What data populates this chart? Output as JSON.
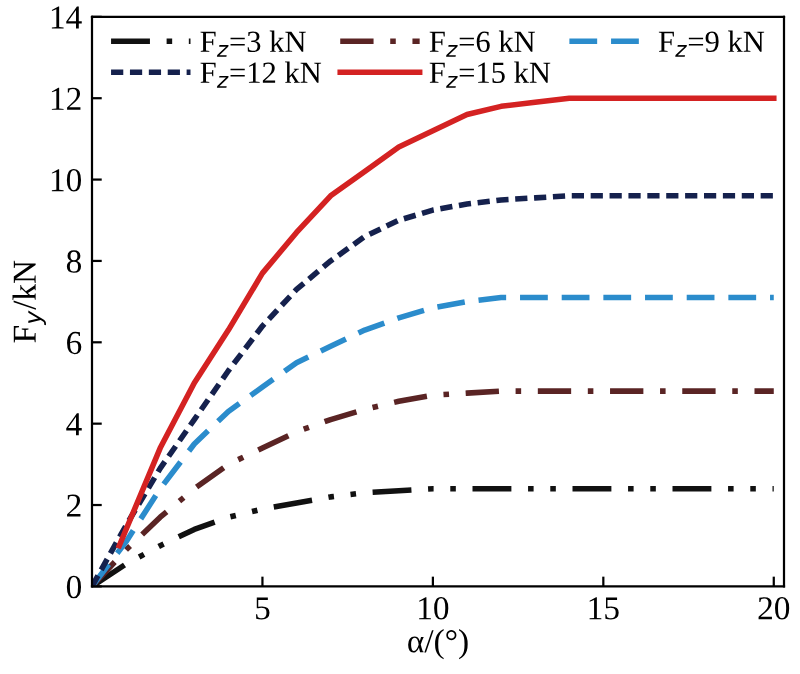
{
  "chart_data": {
    "type": "line",
    "xlabel": "α/(°)",
    "ylabel": "F$_{y}$/kN",
    "xlim": [
      0,
      20.3
    ],
    "xticks": [
      5,
      10,
      15,
      20
    ],
    "ylim": [
      0,
      14
    ],
    "yticks": [
      0,
      2,
      4,
      6,
      8,
      10,
      12,
      14
    ],
    "grid": false,
    "legend": "top",
    "marker": "none",
    "series": [
      {
        "name": "F$_{z}$=3 kN",
        "color": "#111111",
        "line_style": "dashdotdot",
        "x": [
          0,
          1,
          2,
          3,
          4,
          5,
          6,
          7,
          8,
          9,
          10,
          20
        ],
        "values": [
          0,
          0.55,
          1.0,
          1.4,
          1.7,
          1.9,
          2.05,
          2.2,
          2.3,
          2.35,
          2.4,
          2.4
        ]
      },
      {
        "name": "F$_{z}$=6 kN",
        "color": "#5a2424",
        "line_style": "dashdot",
        "x": [
          0,
          1,
          2,
          3,
          4,
          5,
          6,
          7,
          8,
          9,
          10,
          11,
          12,
          20
        ],
        "values": [
          0,
          0.9,
          1.7,
          2.4,
          3.0,
          3.4,
          3.8,
          4.1,
          4.35,
          4.55,
          4.7,
          4.75,
          4.8,
          4.8
        ]
      },
      {
        "name": "F$_{z}$=9 kN",
        "color": "#2b8ccc",
        "line_style": "dashed",
        "x": [
          0,
          1,
          2,
          3,
          4,
          5,
          6,
          7,
          8,
          9,
          10,
          11,
          12,
          20
        ],
        "values": [
          0,
          1.1,
          2.4,
          3.5,
          4.3,
          4.9,
          5.5,
          5.9,
          6.3,
          6.6,
          6.85,
          7.0,
          7.1,
          7.1
        ]
      },
      {
        "name": "F$_{z}$=12 kN",
        "color": "#15214d",
        "line_style": "dotted",
        "x": [
          0,
          1,
          2,
          3,
          4,
          5,
          6,
          7,
          8,
          9,
          10,
          11,
          12,
          13,
          14,
          20
        ],
        "values": [
          0,
          1.5,
          2.9,
          4.1,
          5.3,
          6.4,
          7.3,
          8.0,
          8.6,
          9.0,
          9.25,
          9.4,
          9.5,
          9.55,
          9.6,
          9.6
        ]
      },
      {
        "name": "F$_{z}$=15 kN",
        "color": "#d42222",
        "line_style": "solid",
        "x": [
          0.8,
          2,
          3,
          4,
          5,
          6,
          7,
          8,
          9,
          10,
          11,
          12,
          13,
          14,
          15,
          20
        ],
        "values": [
          1.0,
          3.4,
          5.0,
          6.3,
          7.7,
          8.7,
          9.6,
          10.2,
          10.8,
          11.2,
          11.6,
          11.8,
          11.9,
          12.0,
          12.0,
          12.0
        ]
      }
    ]
  }
}
